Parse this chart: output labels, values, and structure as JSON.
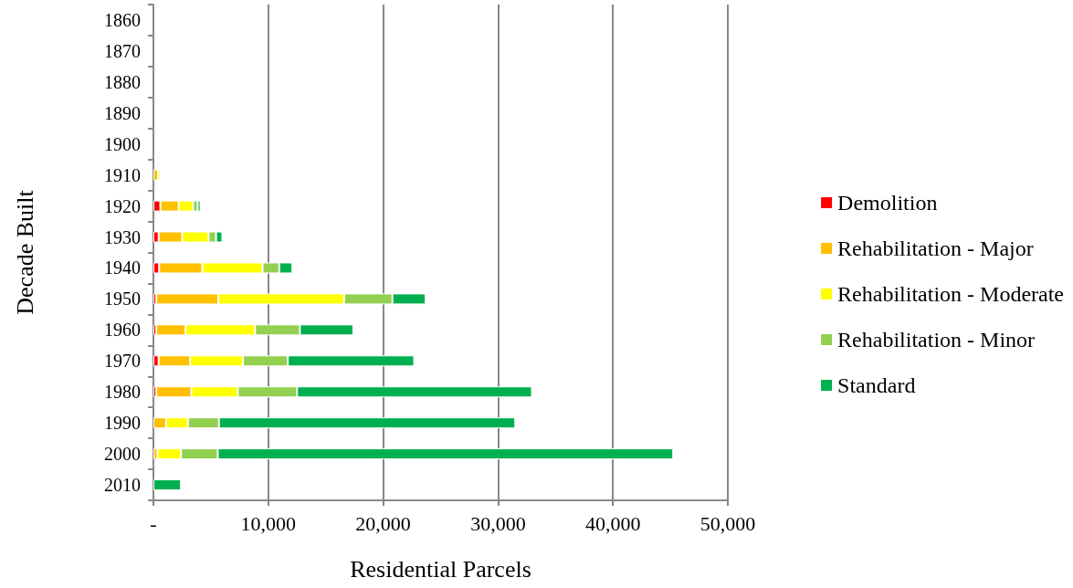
{
  "chart_data": {
    "type": "bar",
    "orientation": "horizontal",
    "stacked": true,
    "xlabel": "Residential Parcels",
    "ylabel": "Decade Built",
    "categories": [
      "1860",
      "1870",
      "1880",
      "1890",
      "1900",
      "1910",
      "1920",
      "1930",
      "1940",
      "1950",
      "1960",
      "1970",
      "1980",
      "1990",
      "2000",
      "2010"
    ],
    "series": [
      {
        "name": "Demolition",
        "color": "#ff0000",
        "values": [
          null,
          null,
          null,
          null,
          null,
          null,
          600,
          450,
          500,
          250,
          250,
          450,
          250,
          null,
          null,
          null
        ]
      },
      {
        "name": "Rehabilitation - Major",
        "color": "#ffc000",
        "values": [
          null,
          null,
          null,
          null,
          null,
          400,
          1600,
          2050,
          3750,
          5400,
          2550,
          2750,
          3050,
          1100,
          350,
          null
        ]
      },
      {
        "name": "Rehabilitation - Moderate",
        "color": "#ffff00",
        "values": [
          null,
          null,
          null,
          null,
          null,
          200,
          1250,
          2300,
          5250,
          10950,
          6050,
          4600,
          4050,
          1900,
          2050,
          null
        ]
      },
      {
        "name": "Rehabilitation - Minor",
        "color": "#92d050",
        "values": [
          null,
          null,
          null,
          null,
          null,
          null,
          400,
          650,
          1450,
          4200,
          3900,
          3900,
          5150,
          2700,
          3200,
          null
        ]
      },
      {
        "name": "Standard",
        "color": "#00b050",
        "values": [
          null,
          null,
          null,
          null,
          null,
          null,
          250,
          550,
          1150,
          2900,
          4650,
          11000,
          20450,
          25800,
          39650,
          2400
        ]
      }
    ],
    "xlim": [
      0,
      50000
    ],
    "xticks": [
      {
        "value": 0,
        "label": "-"
      },
      {
        "value": 10000,
        "label": "10,000"
      },
      {
        "value": 20000,
        "label": "20,000"
      },
      {
        "value": 30000,
        "label": "30,000"
      },
      {
        "value": 40000,
        "label": "40,000"
      },
      {
        "value": 50000,
        "label": "50,000"
      }
    ],
    "grid": "x",
    "legend": "right"
  }
}
